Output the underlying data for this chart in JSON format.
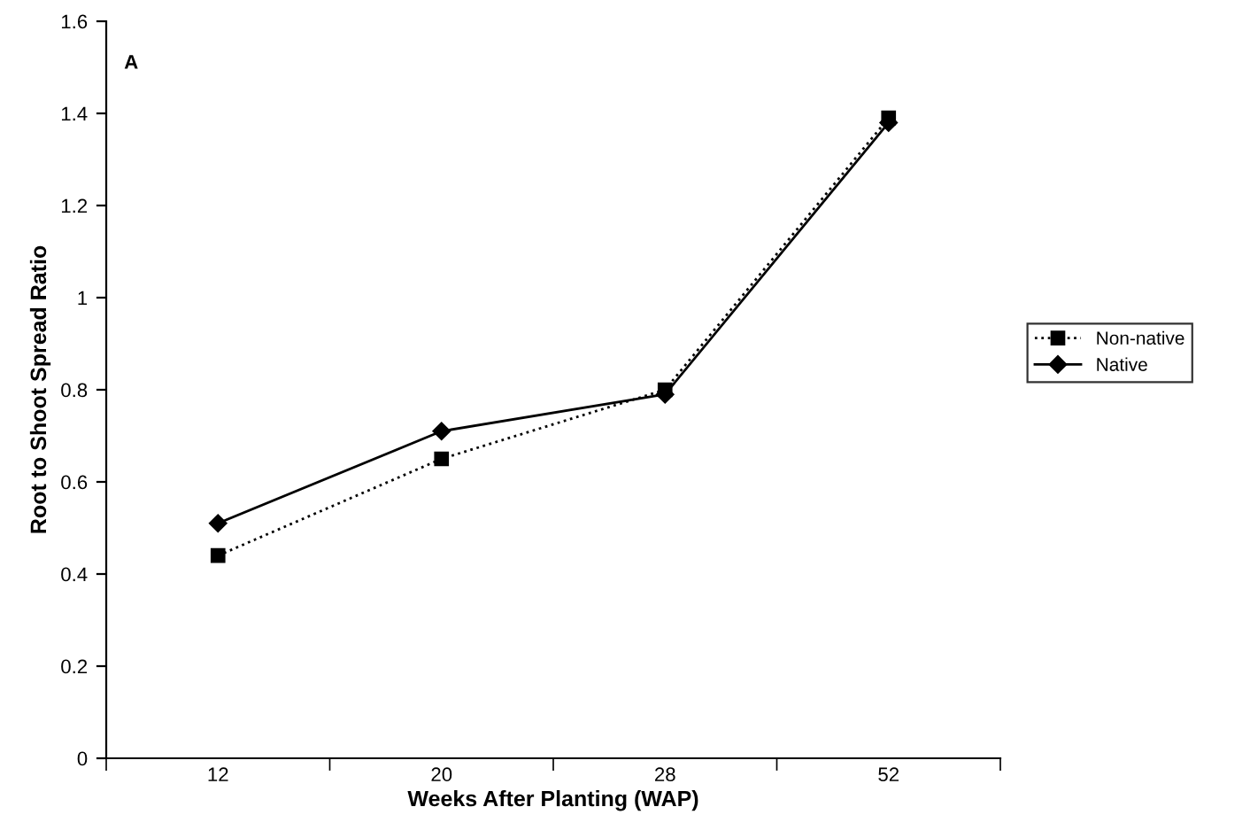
{
  "chart_data": {
    "type": "line",
    "xlabel": "Weeks After Planting (WAP)",
    "ylabel": "Root to Shoot Spread Ratio",
    "annotations": [
      "A"
    ],
    "categories": [
      "12",
      "20",
      "28",
      "52"
    ],
    "series": [
      {
        "name": "Non-native",
        "color": "#000000",
        "values": [
          0.44,
          0.65,
          0.8,
          1.39
        ],
        "marker": "square",
        "line_style": "dotted"
      },
      {
        "name": "Native",
        "color": "#000000",
        "values": [
          0.51,
          0.71,
          0.79,
          1.38
        ],
        "marker": "diamond",
        "line_style": "solid"
      }
    ],
    "ylim": [
      0,
      1.6
    ],
    "yticks": [
      0,
      0.2,
      0.4,
      0.6,
      0.8,
      1,
      1.2,
      1.4,
      1.6
    ],
    "grid": false,
    "legend": "right"
  }
}
